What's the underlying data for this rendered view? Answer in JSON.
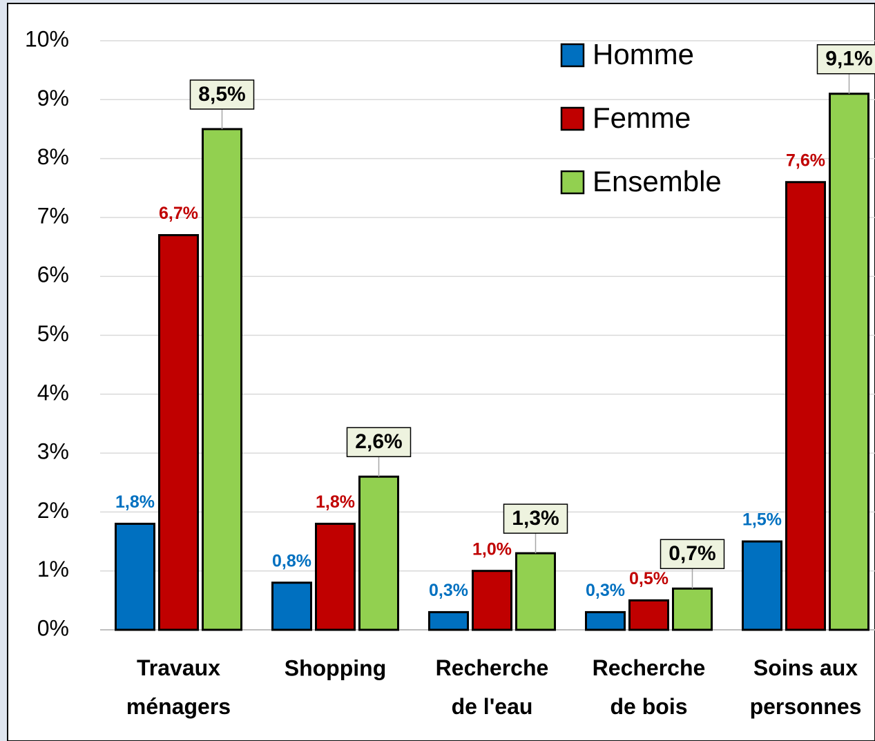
{
  "chart_data": {
    "type": "bar",
    "categories": [
      "Travaux\nménagers",
      "Shopping",
      "Recherche\nde l'eau",
      "Recherche\nde bois",
      "Soins aux\npersonnes"
    ],
    "series": [
      {
        "name": "Homme",
        "color": "#0070c0",
        "values": [
          1.8,
          0.8,
          0.3,
          0.3,
          1.5
        ],
        "value_labels": [
          "1,8%",
          "0,8%",
          "0,3%",
          "0,3%",
          "1,5%"
        ]
      },
      {
        "name": "Femme",
        "color": "#c00000",
        "values": [
          6.7,
          1.8,
          1.0,
          0.5,
          7.6
        ],
        "value_labels": [
          "6,7%",
          "1,8%",
          "1,0%",
          "0,5%",
          "7,6%"
        ]
      },
      {
        "name": "Ensemble",
        "color": "#92d050",
        "values": [
          8.5,
          2.6,
          1.3,
          0.7,
          9.1
        ],
        "value_labels": [
          "8,5%",
          "2,6%",
          "1,3%",
          "0,7%",
          "9,1%"
        ]
      }
    ],
    "ylim": [
      0,
      10
    ],
    "yticks": [
      {
        "value": 0,
        "label": "0%"
      },
      {
        "value": 1,
        "label": "1%"
      },
      {
        "value": 2,
        "label": "2%"
      },
      {
        "value": 3,
        "label": "3%"
      },
      {
        "value": 4,
        "label": "4%"
      },
      {
        "value": 5,
        "label": "5%"
      },
      {
        "value": 6,
        "label": "6%"
      },
      {
        "value": 7,
        "label": "7%"
      },
      {
        "value": 8,
        "label": "8%"
      },
      {
        "value": 9,
        "label": "9%"
      },
      {
        "value": 10,
        "label": "10%"
      }
    ],
    "grid": true
  }
}
